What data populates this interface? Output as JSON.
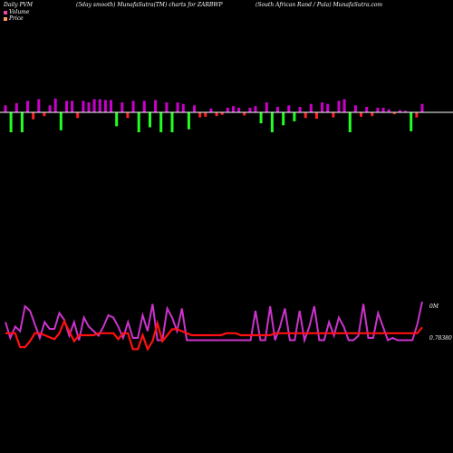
{
  "header": {
    "left": "Daily PVM",
    "middle": "(5day smooth) MunafaSutra(TM) charts for ZARBWP",
    "right": "(South African Rand / Pula) MunafaSutra.com"
  },
  "legend": {
    "volume_label": "Volume",
    "price_label": "Price",
    "volume_color": "#ee44aa",
    "price_color": "#ff9966"
  },
  "axis": {
    "top_label": "0M",
    "price_label": "0.78380"
  },
  "colors": {
    "up_bar": "#cc00cc",
    "down_bar": "#ff2222",
    "strong_down_bar": "#22ff22",
    "volume_line": "#cc33cc",
    "price_line": "#ff1111",
    "baseline": "#ffffff"
  },
  "chart_data": {
    "type": "bar+line",
    "bars": [
      {
        "dir": "up",
        "h": 0.45
      },
      {
        "dir": "strong_down",
        "h": 1.0
      },
      {
        "dir": "up",
        "h": 0.6
      },
      {
        "dir": "strong_down",
        "h": 1.0
      },
      {
        "dir": "up",
        "h": 0.75
      },
      {
        "dir": "down",
        "h": 0.55
      },
      {
        "dir": "up",
        "h": 0.85
      },
      {
        "dir": "down",
        "h": 0.3
      },
      {
        "dir": "up",
        "h": 0.45
      },
      {
        "dir": "up",
        "h": 0.9
      },
      {
        "dir": "strong_down",
        "h": 0.9
      },
      {
        "dir": "up",
        "h": 0.75
      },
      {
        "dir": "up",
        "h": 0.75
      },
      {
        "dir": "down",
        "h": 0.45
      },
      {
        "dir": "up",
        "h": 0.75
      },
      {
        "dir": "up",
        "h": 0.65
      },
      {
        "dir": "up",
        "h": 0.85
      },
      {
        "dir": "up",
        "h": 0.85
      },
      {
        "dir": "up",
        "h": 0.8
      },
      {
        "dir": "up",
        "h": 0.8
      },
      {
        "dir": "strong_down",
        "h": 0.7
      },
      {
        "dir": "up",
        "h": 0.65
      },
      {
        "dir": "down",
        "h": 0.45
      },
      {
        "dir": "up",
        "h": 0.75
      },
      {
        "dir": "strong_down",
        "h": 1.0
      },
      {
        "dir": "up",
        "h": 0.75
      },
      {
        "dir": "strong_down",
        "h": 0.75
      },
      {
        "dir": "up",
        "h": 0.8
      },
      {
        "dir": "strong_down",
        "h": 1.0
      },
      {
        "dir": "up",
        "h": 0.65
      },
      {
        "dir": "strong_down",
        "h": 1.0
      },
      {
        "dir": "up",
        "h": 0.65
      },
      {
        "dir": "up",
        "h": 0.55
      },
      {
        "dir": "strong_down",
        "h": 0.85
      },
      {
        "dir": "up",
        "h": 0.45
      },
      {
        "dir": "down",
        "h": 0.4
      },
      {
        "dir": "down",
        "h": 0.35
      },
      {
        "dir": "up",
        "h": 0.25
      },
      {
        "dir": "down",
        "h": 0.3
      },
      {
        "dir": "down",
        "h": 0.2
      },
      {
        "dir": "up",
        "h": 0.3
      },
      {
        "dir": "up",
        "h": 0.4
      },
      {
        "dir": "up",
        "h": 0.3
      },
      {
        "dir": "down",
        "h": 0.25
      },
      {
        "dir": "up",
        "h": 0.3
      },
      {
        "dir": "up",
        "h": 0.4
      },
      {
        "dir": "strong_down",
        "h": 0.55
      },
      {
        "dir": "up",
        "h": 0.65
      },
      {
        "dir": "strong_down",
        "h": 1.0
      },
      {
        "dir": "up",
        "h": 0.35
      },
      {
        "dir": "strong_down",
        "h": 0.65
      },
      {
        "dir": "up",
        "h": 0.45
      },
      {
        "dir": "strong_down",
        "h": 0.45
      },
      {
        "dir": "up",
        "h": 0.35
      },
      {
        "dir": "down",
        "h": 0.45
      },
      {
        "dir": "up",
        "h": 0.55
      },
      {
        "dir": "down",
        "h": 0.5
      },
      {
        "dir": "up",
        "h": 0.65
      },
      {
        "dir": "up",
        "h": 0.55
      },
      {
        "dir": "down",
        "h": 0.4
      },
      {
        "dir": "up",
        "h": 0.75
      },
      {
        "dir": "up",
        "h": 0.85
      },
      {
        "dir": "strong_down",
        "h": 1.0
      },
      {
        "dir": "up",
        "h": 0.45
      },
      {
        "dir": "down",
        "h": 0.35
      },
      {
        "dir": "up",
        "h": 0.35
      },
      {
        "dir": "down",
        "h": 0.3
      },
      {
        "dir": "up",
        "h": 0.3
      },
      {
        "dir": "up",
        "h": 0.3
      },
      {
        "dir": "up",
        "h": 0.2
      },
      {
        "dir": "down",
        "h": 0.15
      },
      {
        "dir": "up",
        "h": 0.15
      },
      {
        "dir": "up",
        "h": 0.1
      },
      {
        "dir": "strong_down",
        "h": 0.95
      },
      {
        "dir": "down",
        "h": 0.4
      },
      {
        "dir": "up",
        "h": 0.55
      }
    ],
    "volume_line": [
      0.45,
      0.1,
      0.35,
      0.25,
      0.8,
      0.7,
      0.4,
      0.1,
      0.45,
      0.3,
      0.3,
      0.65,
      0.5,
      0.15,
      0.45,
      0.05,
      0.55,
      0.35,
      0.25,
      0.15,
      0.35,
      0.6,
      0.55,
      0.35,
      0.1,
      0.45,
      0.1,
      0.1,
      0.6,
      0.25,
      0.85,
      0.05,
      0.05,
      0.75,
      0.55,
      0.25,
      0.75,
      0.05,
      0.05,
      0.05,
      0.05,
      0.05,
      0.05,
      0.05,
      0.05,
      0.05,
      0.05,
      0.05,
      0.05,
      0.05,
      0.05,
      0.7,
      0.05,
      0.05,
      0.8,
      0.05,
      0.35,
      0.75,
      0.05,
      0.05,
      0.7,
      0.05,
      0.35,
      0.8,
      0.05,
      0.05,
      0.45,
      0.15,
      0.55,
      0.35,
      0.05,
      0.05,
      0.15,
      0.85,
      0.1,
      0.1,
      0.65,
      0.35,
      0.05,
      0.1,
      0.05,
      0.05,
      0.05,
      0.05,
      0.4,
      0.9
    ],
    "price_line": [
      0.55,
      0.55,
      0.55,
      0.2,
      0.2,
      0.35,
      0.55,
      0.55,
      0.5,
      0.45,
      0.4,
      0.55,
      0.85,
      0.6,
      0.35,
      0.5,
      0.5,
      0.5,
      0.5,
      0.55,
      0.55,
      0.55,
      0.55,
      0.4,
      0.55,
      0.55,
      0.15,
      0.15,
      0.5,
      0.15,
      0.35,
      0.8,
      0.35,
      0.5,
      0.65,
      0.65,
      0.6,
      0.55,
      0.5,
      0.5,
      0.5,
      0.5,
      0.5,
      0.5,
      0.5,
      0.55,
      0.55,
      0.55,
      0.5,
      0.5,
      0.5,
      0.5,
      0.5,
      0.5,
      0.5,
      0.55,
      0.55,
      0.55,
      0.55,
      0.55,
      0.55,
      0.55,
      0.55,
      0.55,
      0.55,
      0.55,
      0.55,
      0.55,
      0.55,
      0.55,
      0.55,
      0.55,
      0.55,
      0.55,
      0.55,
      0.55,
      0.55,
      0.55,
      0.55,
      0.55,
      0.55,
      0.55,
      0.55,
      0.55,
      0.55,
      0.7
    ]
  }
}
